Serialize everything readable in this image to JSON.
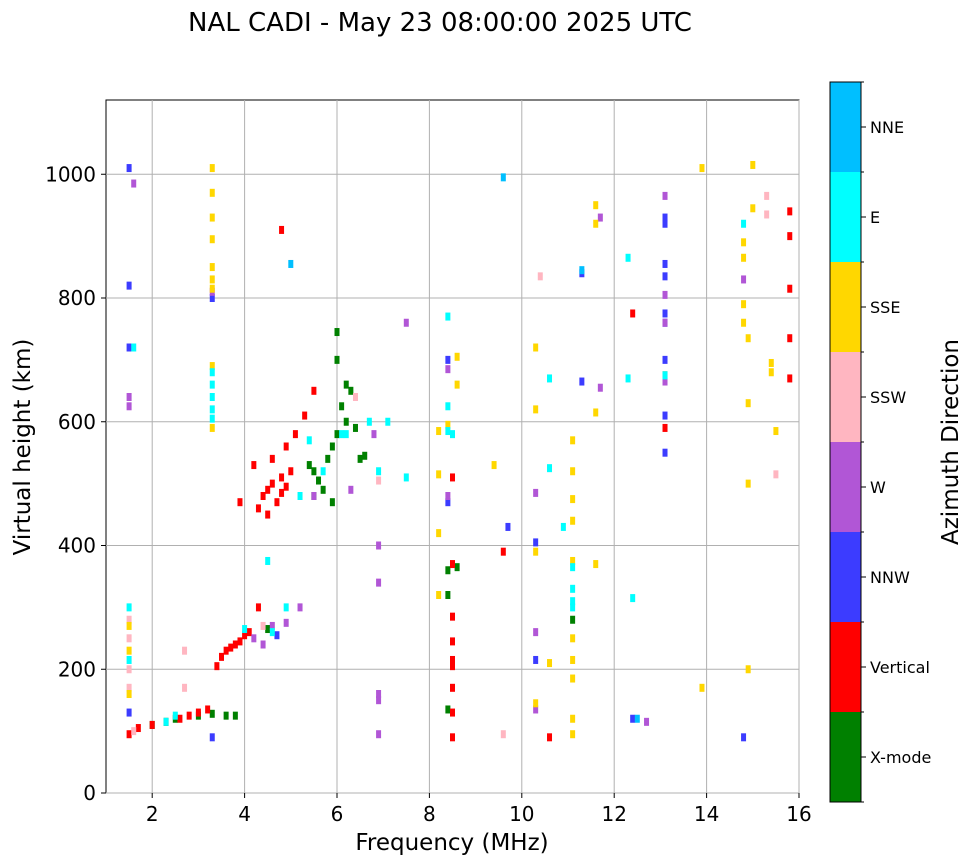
{
  "chart_data": {
    "type": "scatter",
    "title": "NAL CADI - May 23 08:00:00 2025 UTC",
    "xlabel": "Frequency (MHz)",
    "ylabel": "Virtual height (km)",
    "xlim": [
      1,
      16
    ],
    "ylim": [
      0,
      1120
    ],
    "xticks": [
      2,
      4,
      6,
      8,
      10,
      12,
      14,
      16
    ],
    "yticks": [
      0,
      200,
      400,
      600,
      800,
      1000
    ],
    "grid": true,
    "colorbar": {
      "label": "Azimuth Direction",
      "categories": [
        {
          "name": "X-mode",
          "color": "#008000"
        },
        {
          "name": "Vertical",
          "color": "#ff0000"
        },
        {
          "name": "NNW",
          "color": "#3c3cff"
        },
        {
          "name": "W",
          "color": "#b156d6"
        },
        {
          "name": "SSW",
          "color": "#ffb6c1"
        },
        {
          "name": "SSE",
          "color": "#ffd700"
        },
        {
          "name": "E",
          "color": "#00ffff"
        },
        {
          "name": "NNE",
          "color": "#00bfff"
        }
      ]
    },
    "series": [
      {
        "name": "X-mode",
        "color": "#008000",
        "points": [
          [
            2.0,
            110
          ],
          [
            2.3,
            115
          ],
          [
            2.5,
            120
          ],
          [
            3.0,
            125
          ],
          [
            3.3,
            128
          ],
          [
            3.6,
            125
          ],
          [
            3.8,
            125
          ],
          [
            4.5,
            265
          ],
          [
            5.5,
            520
          ],
          [
            5.6,
            505
          ],
          [
            5.8,
            540
          ],
          [
            5.9,
            560
          ],
          [
            6.0,
            580
          ],
          [
            6.0,
            745
          ],
          [
            6.1,
            625
          ],
          [
            6.2,
            600
          ],
          [
            6.3,
            650
          ],
          [
            6.5,
            540
          ],
          [
            5.7,
            490
          ],
          [
            5.9,
            470
          ],
          [
            6.4,
            590
          ],
          [
            6.6,
            545
          ],
          [
            6.0,
            700
          ],
          [
            6.2,
            660
          ],
          [
            5.4,
            530
          ],
          [
            5.5,
            480
          ],
          [
            8.4,
            360
          ],
          [
            8.4,
            320
          ],
          [
            8.4,
            135
          ],
          [
            8.6,
            365
          ],
          [
            11.1,
            280
          ],
          [
            13.1,
            675
          ]
        ]
      },
      {
        "name": "Vertical",
        "color": "#ff0000",
        "points": [
          [
            1.5,
            95
          ],
          [
            1.7,
            105
          ],
          [
            2.0,
            110
          ],
          [
            2.6,
            120
          ],
          [
            2.8,
            125
          ],
          [
            3.0,
            130
          ],
          [
            3.2,
            135
          ],
          [
            3.4,
            205
          ],
          [
            3.5,
            220
          ],
          [
            3.6,
            230
          ],
          [
            3.7,
            235
          ],
          [
            3.8,
            240
          ],
          [
            3.9,
            245
          ],
          [
            4.0,
            255
          ],
          [
            4.1,
            260
          ],
          [
            4.3,
            300
          ],
          [
            3.9,
            470
          ],
          [
            4.3,
            460
          ],
          [
            4.4,
            480
          ],
          [
            4.5,
            490
          ],
          [
            4.6,
            500
          ],
          [
            4.7,
            470
          ],
          [
            4.8,
            485
          ],
          [
            4.9,
            495
          ],
          [
            5.0,
            520
          ],
          [
            4.5,
            450
          ],
          [
            4.8,
            510
          ],
          [
            4.2,
            530
          ],
          [
            4.6,
            540
          ],
          [
            4.9,
            560
          ],
          [
            5.1,
            580
          ],
          [
            5.3,
            610
          ],
          [
            5.5,
            650
          ],
          [
            4.8,
            910
          ],
          [
            8.5,
            510
          ],
          [
            8.5,
            370
          ],
          [
            8.5,
            285
          ],
          [
            8.5,
            245
          ],
          [
            8.5,
            215
          ],
          [
            8.5,
            205
          ],
          [
            8.5,
            170
          ],
          [
            8.5,
            130
          ],
          [
            8.5,
            90
          ],
          [
            9.6,
            390
          ],
          [
            10.6,
            90
          ],
          [
            12.4,
            775
          ],
          [
            13.1,
            590
          ],
          [
            15.8,
            940
          ],
          [
            15.8,
            900
          ],
          [
            15.8,
            815
          ],
          [
            15.8,
            735
          ],
          [
            15.8,
            670
          ]
        ]
      },
      {
        "name": "NNW",
        "color": "#3c3cff",
        "points": [
          [
            1.5,
            1010
          ],
          [
            1.5,
            820
          ],
          [
            1.5,
            720
          ],
          [
            1.5,
            130
          ],
          [
            3.3,
            800
          ],
          [
            3.3,
            90
          ],
          [
            4.7,
            255
          ],
          [
            8.4,
            700
          ],
          [
            8.4,
            470
          ],
          [
            10.3,
            215
          ],
          [
            11.3,
            665
          ],
          [
            11.3,
            840
          ],
          [
            13.1,
            550
          ],
          [
            13.1,
            610
          ],
          [
            13.1,
            700
          ],
          [
            13.1,
            760
          ],
          [
            13.1,
            775
          ],
          [
            13.1,
            835
          ],
          [
            13.1,
            855
          ],
          [
            13.1,
            920
          ],
          [
            13.1,
            930
          ],
          [
            14.8,
            90
          ],
          [
            12.4,
            120
          ],
          [
            9.7,
            430
          ],
          [
            10.3,
            405
          ]
        ]
      },
      {
        "name": "W",
        "color": "#b156d6",
        "points": [
          [
            1.6,
            985
          ],
          [
            1.5,
            640
          ],
          [
            1.5,
            625
          ],
          [
            3.3,
            810
          ],
          [
            4.2,
            250
          ],
          [
            4.4,
            240
          ],
          [
            4.6,
            270
          ],
          [
            4.9,
            275
          ],
          [
            5.2,
            300
          ],
          [
            5.5,
            480
          ],
          [
            6.3,
            490
          ],
          [
            6.8,
            580
          ],
          [
            6.9,
            400
          ],
          [
            6.9,
            340
          ],
          [
            6.9,
            160
          ],
          [
            6.9,
            150
          ],
          [
            6.9,
            95
          ],
          [
            7.5,
            760
          ],
          [
            8.4,
            685
          ],
          [
            8.4,
            480
          ],
          [
            10.3,
            485
          ],
          [
            10.3,
            260
          ],
          [
            10.3,
            135
          ],
          [
            11.7,
            930
          ],
          [
            11.7,
            655
          ],
          [
            13.1,
            965
          ],
          [
            13.1,
            805
          ],
          [
            13.1,
            760
          ],
          [
            13.1,
            665
          ],
          [
            14.8,
            830
          ],
          [
            12.7,
            115
          ]
        ]
      },
      {
        "name": "SSW",
        "color": "#ffb6c1",
        "points": [
          [
            1.5,
            280
          ],
          [
            1.5,
            250
          ],
          [
            1.5,
            200
          ],
          [
            1.5,
            170
          ],
          [
            1.6,
            100
          ],
          [
            2.7,
            170
          ],
          [
            2.7,
            230
          ],
          [
            4.4,
            270
          ],
          [
            6.4,
            640
          ],
          [
            6.9,
            505
          ],
          [
            9.6,
            95
          ],
          [
            10.4,
            835
          ],
          [
            15.3,
            965
          ],
          [
            15.3,
            935
          ],
          [
            15.5,
            515
          ]
        ]
      },
      {
        "name": "SSE",
        "color": "#ffd700",
        "points": [
          [
            1.5,
            270
          ],
          [
            1.5,
            230
          ],
          [
            1.5,
            160
          ],
          [
            3.3,
            1010
          ],
          [
            3.3,
            970
          ],
          [
            3.3,
            930
          ],
          [
            3.3,
            895
          ],
          [
            3.3,
            850
          ],
          [
            3.3,
            830
          ],
          [
            3.3,
            815
          ],
          [
            3.3,
            690
          ],
          [
            3.3,
            590
          ],
          [
            8.2,
            585
          ],
          [
            8.2,
            515
          ],
          [
            8.2,
            420
          ],
          [
            8.2,
            320
          ],
          [
            8.4,
            595
          ],
          [
            8.6,
            660
          ],
          [
            8.6,
            705
          ],
          [
            9.4,
            530
          ],
          [
            10.3,
            720
          ],
          [
            10.3,
            620
          ],
          [
            10.3,
            390
          ],
          [
            10.3,
            145
          ],
          [
            10.6,
            210
          ],
          [
            11.1,
            570
          ],
          [
            11.1,
            520
          ],
          [
            11.1,
            475
          ],
          [
            11.1,
            440
          ],
          [
            11.1,
            375
          ],
          [
            11.1,
            250
          ],
          [
            11.1,
            215
          ],
          [
            11.1,
            185
          ],
          [
            11.1,
            120
          ],
          [
            11.1,
            95
          ],
          [
            11.6,
            950
          ],
          [
            11.6,
            920
          ],
          [
            11.6,
            615
          ],
          [
            11.6,
            370
          ],
          [
            13.9,
            1010
          ],
          [
            13.9,
            170
          ],
          [
            14.8,
            890
          ],
          [
            14.8,
            865
          ],
          [
            14.8,
            790
          ],
          [
            14.8,
            760
          ],
          [
            14.9,
            735
          ],
          [
            14.9,
            630
          ],
          [
            14.9,
            500
          ],
          [
            14.9,
            200
          ],
          [
            15.0,
            1015
          ],
          [
            15.0,
            945
          ],
          [
            15.4,
            695
          ],
          [
            15.4,
            680
          ],
          [
            15.5,
            585
          ]
        ]
      },
      {
        "name": "E",
        "color": "#00ffff",
        "points": [
          [
            1.5,
            300
          ],
          [
            1.5,
            215
          ],
          [
            1.6,
            720
          ],
          [
            2.3,
            115
          ],
          [
            2.5,
            125
          ],
          [
            3.3,
            680
          ],
          [
            3.3,
            660
          ],
          [
            3.3,
            640
          ],
          [
            3.3,
            620
          ],
          [
            3.3,
            605
          ],
          [
            4.0,
            265
          ],
          [
            4.5,
            375
          ],
          [
            4.6,
            260
          ],
          [
            4.9,
            300
          ],
          [
            5.2,
            480
          ],
          [
            5.4,
            570
          ],
          [
            5.7,
            520
          ],
          [
            6.1,
            580
          ],
          [
            6.2,
            580
          ],
          [
            6.7,
            600
          ],
          [
            6.9,
            520
          ],
          [
            7.1,
            600
          ],
          [
            7.5,
            510
          ],
          [
            8.4,
            770
          ],
          [
            8.4,
            625
          ],
          [
            8.4,
            585
          ],
          [
            8.5,
            580
          ],
          [
            10.6,
            670
          ],
          [
            10.6,
            525
          ],
          [
            11.1,
            365
          ],
          [
            11.1,
            330
          ],
          [
            11.1,
            310
          ],
          [
            11.1,
            300
          ],
          [
            12.3,
            865
          ],
          [
            12.3,
            670
          ],
          [
            12.4,
            315
          ],
          [
            13.1,
            675
          ],
          [
            14.8,
            920
          ],
          [
            10.9,
            430
          ]
        ]
      },
      {
        "name": "NNE",
        "color": "#00bfff",
        "points": [
          [
            9.6,
            995
          ],
          [
            11.3,
            845
          ],
          [
            5.0,
            855
          ],
          [
            12.5,
            120
          ]
        ]
      }
    ]
  }
}
